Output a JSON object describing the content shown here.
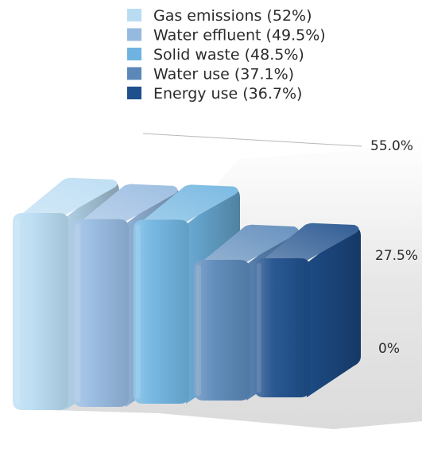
{
  "chart_data": {
    "type": "bar",
    "categories": [
      "Gas emissions",
      "Water effluent",
      "Solid waste",
      "Water use",
      "Energy use"
    ],
    "series": [
      {
        "values": [
          52,
          49.5,
          48.5,
          37.1,
          36.7
        ]
      }
    ],
    "legend": [
      {
        "label": "Gas emissions (52%)",
        "color": "#b9dcf3"
      },
      {
        "label": "Water effluent (49.5%)",
        "color": "#96b9e0"
      },
      {
        "label": "Solid waste (48.5%)",
        "color": "#6fb4e0"
      },
      {
        "label": "Water use (37.1%)",
        "color": "#5b88b9"
      },
      {
        "label": "Energy use (36.7%)",
        "color": "#1f4f8c"
      }
    ],
    "yaxis": {
      "ticks": [
        "0%",
        "27.5%",
        "55.0%"
      ],
      "tick_values": [
        0,
        27.5,
        55
      ]
    },
    "ylim": [
      0,
      55
    ],
    "legend_position": "top",
    "style": "3d-columns",
    "grid": false,
    "title": "",
    "xlabel": "",
    "ylabel": ""
  }
}
